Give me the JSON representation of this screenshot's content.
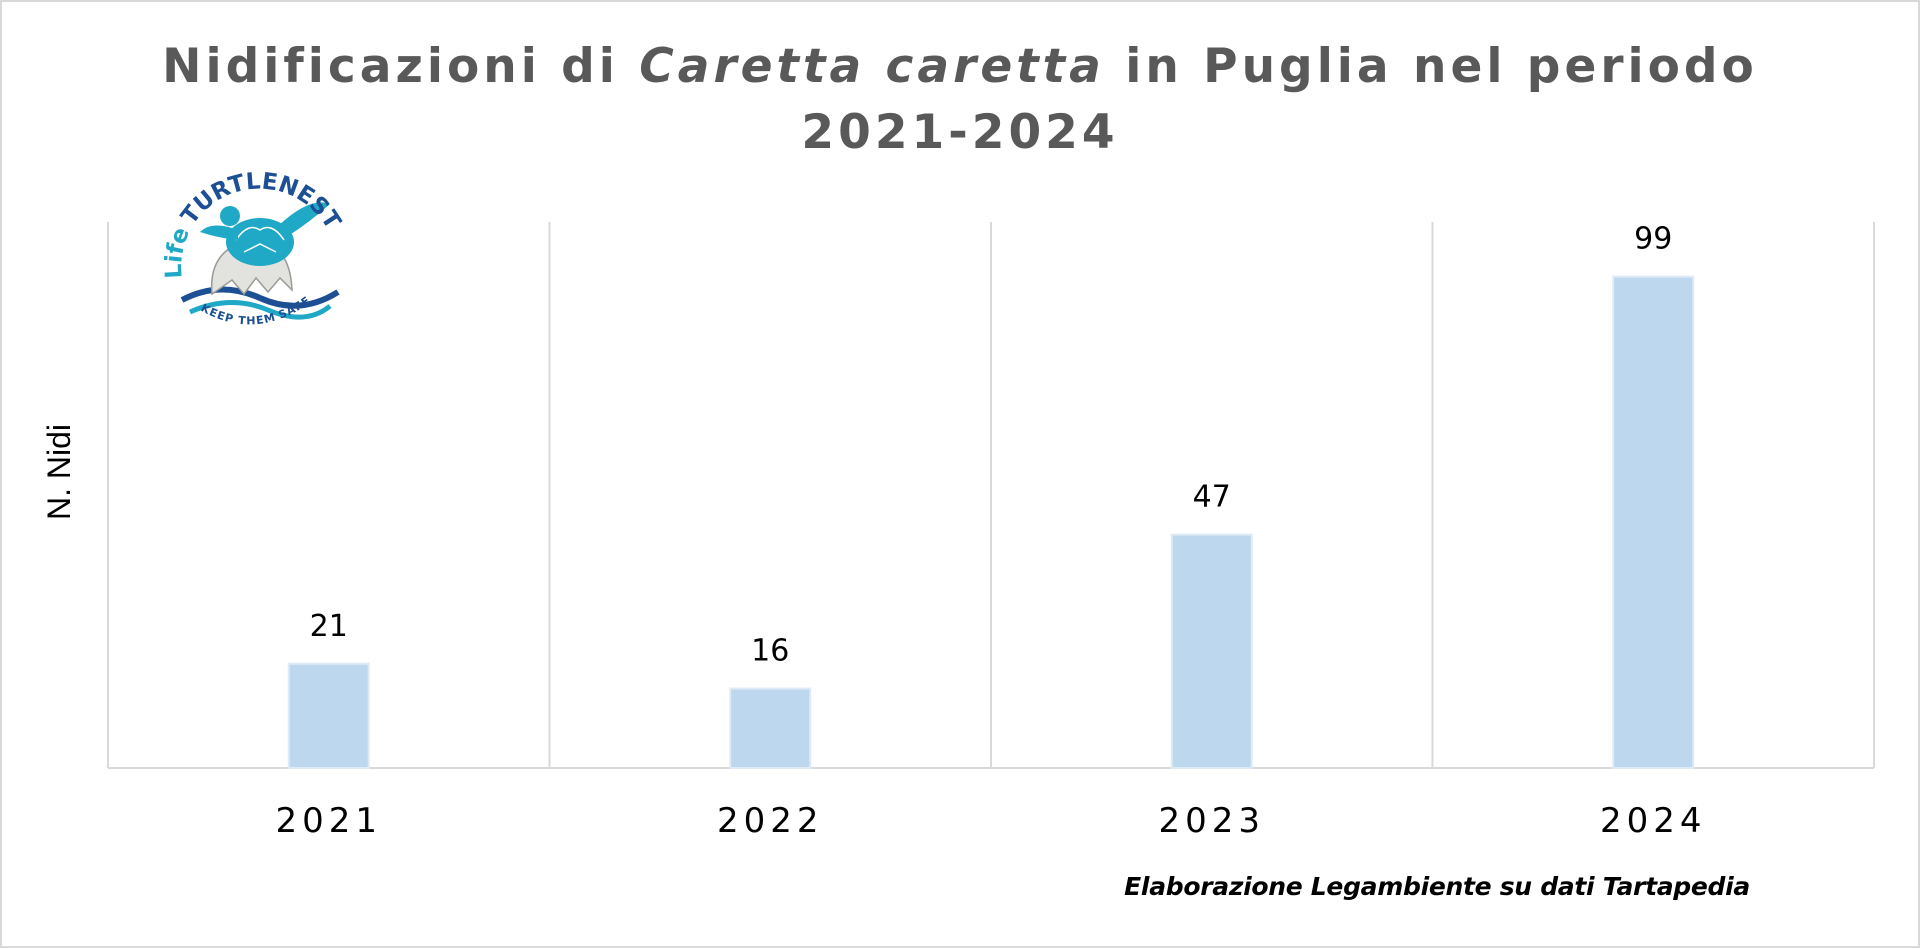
{
  "chart_data": {
    "type": "bar",
    "title_parts": [
      "Nidificazioni di ",
      "Caretta caretta",
      " in Puglia nel periodo"
    ],
    "title_line2": "2021-2024",
    "ylabel": "N. Nidi",
    "xlabel": "",
    "categories": [
      "2021",
      "2022",
      "2023",
      "2024"
    ],
    "values": [
      21,
      16,
      47,
      99
    ],
    "ylim": [
      0,
      110
    ],
    "grid": "vertical",
    "bar_color": "#bdd7ee",
    "bar_edge_color": "#deebf7"
  },
  "credit": "Elaborazione Legambiente su dati Tartapedia",
  "logo": {
    "arc_text_left": "Life",
    "arc_text_top": "TURTLENEST",
    "arc_text_right": "SAFE",
    "bottom_text": "KEEP THEM",
    "colors": {
      "teal": "#1fa9c7",
      "navy": "#1c4f93",
      "shell": "#e2e2de"
    }
  }
}
